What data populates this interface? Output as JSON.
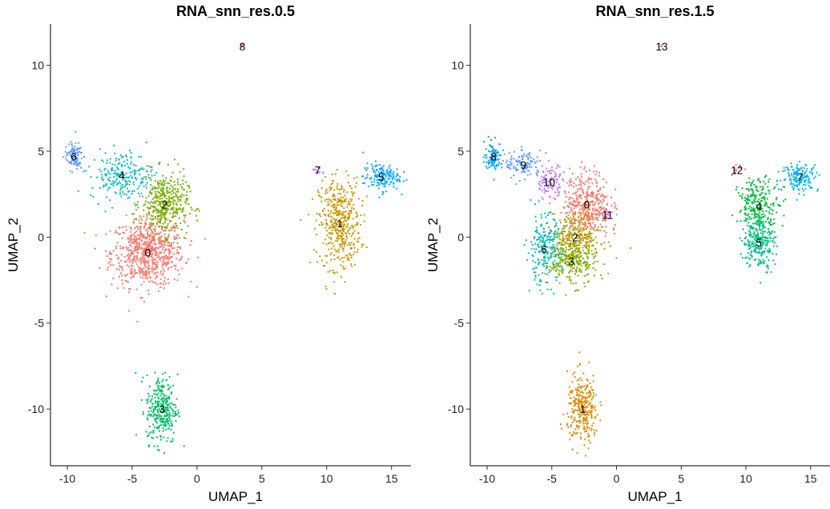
{
  "colors": {
    "res05": [
      "#F8766D",
      "#CD9600",
      "#7CAE00",
      "#00BE67",
      "#00BFC4",
      "#00A9FF",
      "#619CFF",
      "#C77CFF",
      "#FF61CC"
    ],
    "res15": [
      "#F8766D",
      "#DE8C00",
      "#B79F00",
      "#7CAE00",
      "#00BA38",
      "#00C08B",
      "#00BFC4",
      "#00B4F0",
      "#00A5FF",
      "#619CFF",
      "#C77CFF",
      "#F564E3",
      "#FF64B0",
      "#FF6C91"
    ]
  },
  "chart_data": [
    {
      "type": "scatter",
      "title": "RNA_snn_res.0.5",
      "xlabel": "UMAP_1",
      "ylabel": "UMAP_2",
      "xlim": [
        -11.3,
        16.5
      ],
      "ylim": [
        -13.3,
        12.4
      ],
      "xticks": [
        -10,
        -5,
        0,
        5,
        10,
        15
      ],
      "yticks": [
        -10,
        -5,
        0,
        5,
        10
      ],
      "grid": false,
      "legend": "none",
      "clusters": [
        {
          "label": "0",
          "center": [
            -3.8,
            -0.9
          ],
          "sd": [
            1.4,
            1.0
          ],
          "points": 700,
          "color_index": 0
        },
        {
          "label": "1",
          "center": [
            11.0,
            0.8
          ],
          "sd": [
            0.8,
            1.3
          ],
          "points": 450,
          "color_index": 1
        },
        {
          "label": "2",
          "center": [
            -2.5,
            1.9
          ],
          "sd": [
            0.9,
            0.9
          ],
          "points": 400,
          "color_index": 2
        },
        {
          "label": "3",
          "center": [
            -2.7,
            -10.0
          ],
          "sd": [
            0.6,
            1.0
          ],
          "points": 300,
          "color_index": 3
        },
        {
          "label": "4",
          "center": [
            -5.8,
            3.6
          ],
          "sd": [
            1.2,
            0.7
          ],
          "points": 220,
          "color_index": 4
        },
        {
          "label": "5",
          "center": [
            14.2,
            3.5
          ],
          "sd": [
            0.7,
            0.4
          ],
          "points": 150,
          "color_index": 5
        },
        {
          "label": "6",
          "center": [
            -9.5,
            4.7
          ],
          "sd": [
            0.35,
            0.4
          ],
          "points": 100,
          "color_index": 6
        },
        {
          "label": "7",
          "center": [
            9.3,
            3.9
          ],
          "sd": [
            0.18,
            0.15
          ],
          "points": 12,
          "color_index": 7
        },
        {
          "label": "8",
          "center": [
            3.5,
            11.1
          ],
          "sd": [
            0.05,
            0.05
          ],
          "points": 4,
          "color_index": 8
        }
      ]
    },
    {
      "type": "scatter",
      "title": "RNA_snn_res.1.5",
      "xlabel": "UMAP_1",
      "ylabel": "UMAP_2",
      "xlim": [
        -11.3,
        16.5
      ],
      "ylim": [
        -13.3,
        12.4
      ],
      "xticks": [
        -10,
        -5,
        0,
        5,
        10,
        15
      ],
      "yticks": [
        -10,
        -5,
        0,
        5,
        10
      ],
      "grid": false,
      "legend": "none",
      "clusters": [
        {
          "label": "0",
          "center": [
            -2.3,
            1.9
          ],
          "sd": [
            0.9,
            1.0
          ],
          "points": 380,
          "color_index": 0
        },
        {
          "label": "1",
          "center": [
            -2.6,
            -10.0
          ],
          "sd": [
            0.6,
            1.0
          ],
          "points": 300,
          "color_index": 1
        },
        {
          "label": "2",
          "center": [
            -3.2,
            0.0
          ],
          "sd": [
            1.0,
            0.7
          ],
          "points": 280,
          "color_index": 2
        },
        {
          "label": "3",
          "center": [
            -3.5,
            -1.4
          ],
          "sd": [
            1.0,
            0.7
          ],
          "points": 260,
          "color_index": 3
        },
        {
          "label": "4",
          "center": [
            11.0,
            1.8
          ],
          "sd": [
            0.8,
            0.8
          ],
          "points": 250,
          "color_index": 4
        },
        {
          "label": "5",
          "center": [
            11.0,
            -0.3
          ],
          "sd": [
            0.6,
            0.8
          ],
          "points": 230,
          "color_index": 5
        },
        {
          "label": "6",
          "center": [
            -5.6,
            -0.7
          ],
          "sd": [
            0.7,
            1.0
          ],
          "points": 200,
          "color_index": 6
        },
        {
          "label": "7",
          "center": [
            14.2,
            3.5
          ],
          "sd": [
            0.7,
            0.4
          ],
          "points": 150,
          "color_index": 7
        },
        {
          "label": "8",
          "center": [
            -9.5,
            4.7
          ],
          "sd": [
            0.35,
            0.4
          ],
          "points": 100,
          "color_index": 8
        },
        {
          "label": "9",
          "center": [
            -7.2,
            4.2
          ],
          "sd": [
            0.7,
            0.4
          ],
          "points": 120,
          "color_index": 9
        },
        {
          "label": "10",
          "center": [
            -5.2,
            3.2
          ],
          "sd": [
            0.5,
            0.5
          ],
          "points": 100,
          "color_index": 10
        },
        {
          "label": "11",
          "center": [
            -0.7,
            1.3
          ],
          "sd": [
            0.15,
            0.15
          ],
          "points": 15,
          "color_index": 11
        },
        {
          "label": "12",
          "center": [
            9.3,
            3.9
          ],
          "sd": [
            0.18,
            0.15
          ],
          "points": 12,
          "color_index": 12
        },
        {
          "label": "13",
          "center": [
            3.5,
            11.1
          ],
          "sd": [
            0.05,
            0.05
          ],
          "points": 4,
          "color_index": 13
        }
      ]
    }
  ]
}
